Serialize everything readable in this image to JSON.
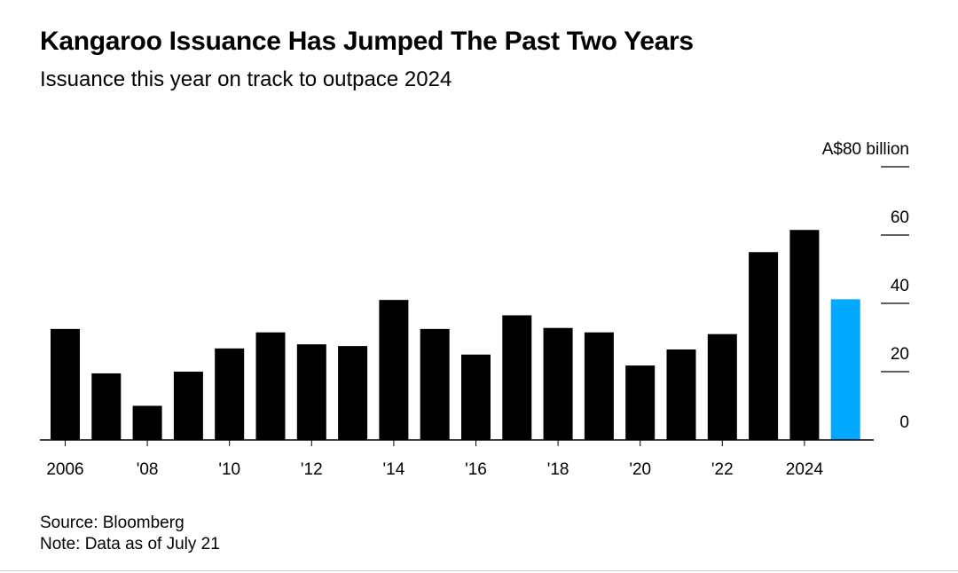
{
  "header": {
    "title": "Kangaroo Issuance Has Jumped The Past Two Years",
    "subtitle": "Issuance this year on track to outpace 2024"
  },
  "footer": {
    "source": "Source: Bloomberg",
    "note": "Note: Data as of July 21"
  },
  "colors": {
    "bar": "#000000",
    "highlight": "#00a8ff"
  },
  "chart_data": {
    "type": "bar",
    "title": "Kangaroo Issuance Has Jumped The Past Two Years",
    "subtitle": "Issuance this year on track to outpace 2024",
    "ylabel": "A$80 billion",
    "unit": "A$ billion",
    "ylim": [
      0,
      80
    ],
    "yticks": [
      0,
      20,
      40,
      60,
      80
    ],
    "ytick_labels": [
      "0",
      "20",
      "40",
      "60",
      "A$80 billion"
    ],
    "y_axis_position": "right",
    "categories": [
      2006,
      2007,
      2008,
      2009,
      2010,
      2011,
      2012,
      2013,
      2014,
      2015,
      2016,
      2017,
      2018,
      2019,
      2020,
      2021,
      2022,
      2023,
      2024,
      2025
    ],
    "xtick_labels": [
      {
        "x": 2006,
        "label": "2006"
      },
      {
        "x": 2008,
        "label": "'08"
      },
      {
        "x": 2010,
        "label": "'10"
      },
      {
        "x": 2012,
        "label": "'12"
      },
      {
        "x": 2014,
        "label": "'14"
      },
      {
        "x": 2016,
        "label": "'16"
      },
      {
        "x": 2018,
        "label": "'18"
      },
      {
        "x": 2020,
        "label": "'20"
      },
      {
        "x": 2022,
        "label": "'22"
      },
      {
        "x": 2024,
        "label": "2024"
      }
    ],
    "values": [
      32.5,
      19.5,
      10.0,
      20.0,
      26.8,
      31.5,
      28.0,
      27.5,
      41.0,
      32.5,
      25.0,
      36.5,
      32.8,
      31.5,
      21.8,
      26.5,
      31.0,
      55.0,
      61.5,
      41.2
    ],
    "highlight_index": 19,
    "grid": false
  }
}
